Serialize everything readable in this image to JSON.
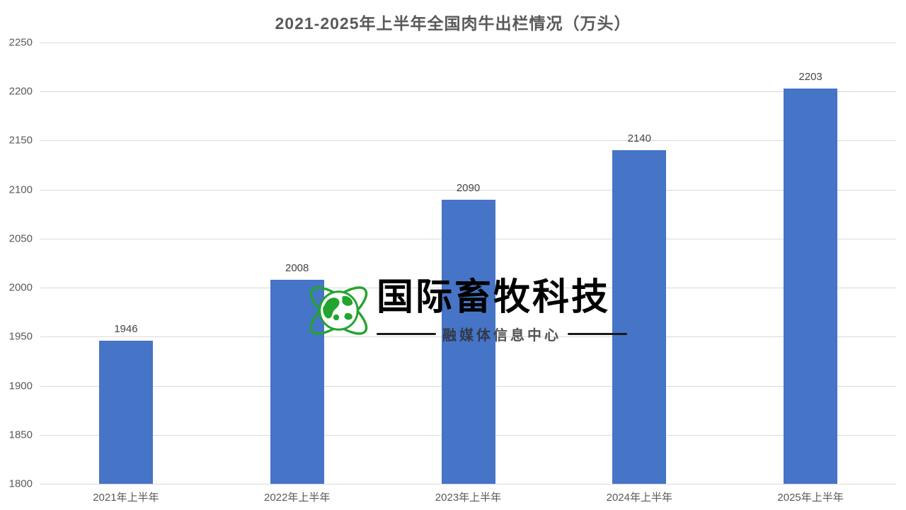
{
  "chart_data": {
    "type": "bar",
    "title": "2021-2025年上半年全国肉牛出栏情况（万头）",
    "categories": [
      "2021年上半年",
      "2022年上半年",
      "2023年上半年",
      "2024年上半年",
      "2025年上半年"
    ],
    "values": [
      1946,
      2008,
      2090,
      2140,
      2203
    ],
    "xlabel": "",
    "ylabel": "",
    "ylim": [
      1800,
      2250
    ],
    "ytick_step": 50,
    "grid": true,
    "legend_position": "none",
    "bar_color": "#4674c6",
    "gridline_color": "#d9d9d9",
    "label_color": "#444444",
    "axis_text_color": "#595959"
  },
  "watermark": {
    "brand": "国际畜牧科技",
    "subtitle": "融媒体信息中心",
    "globe_icon": "globe-orbit-icon",
    "globe_color": "#23a42f",
    "brand_color": "#000000"
  }
}
